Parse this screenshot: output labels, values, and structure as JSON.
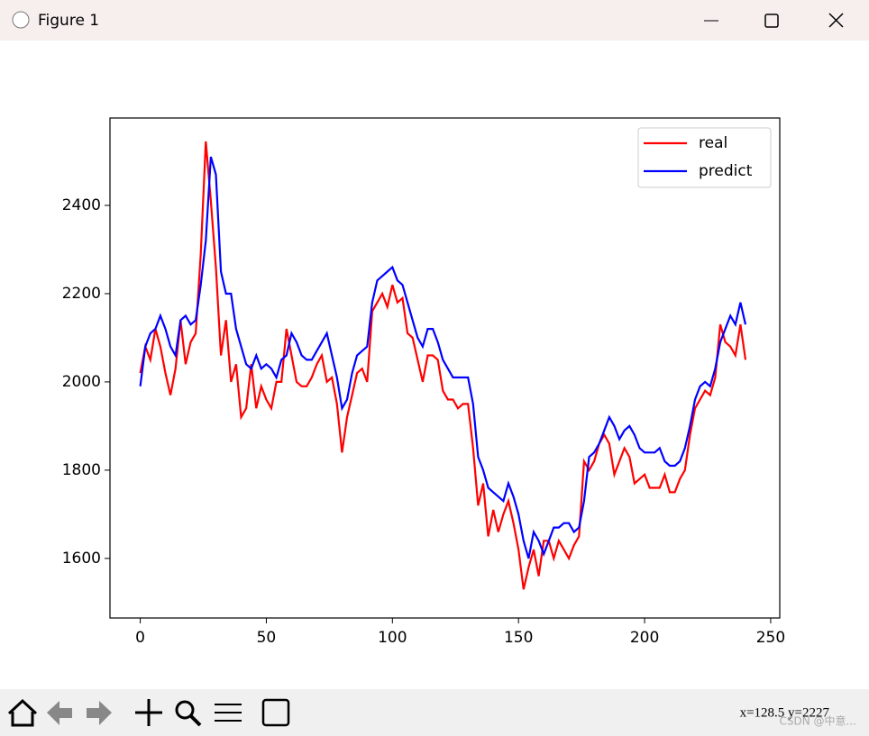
{
  "window": {
    "title": "Figure 1",
    "status": "x=128.5  y=2227",
    "watermark": "CSDN @中意..."
  },
  "chart_data": {
    "type": "line",
    "x": [
      0,
      2,
      4,
      6,
      8,
      10,
      12,
      14,
      16,
      18,
      20,
      22,
      24,
      26,
      28,
      30,
      32,
      34,
      36,
      38,
      40,
      42,
      44,
      46,
      48,
      50,
      52,
      54,
      56,
      58,
      60,
      62,
      64,
      66,
      68,
      70,
      72,
      74,
      76,
      78,
      80,
      82,
      84,
      86,
      88,
      90,
      92,
      94,
      96,
      98,
      100,
      102,
      104,
      106,
      108,
      110,
      112,
      114,
      116,
      118,
      120,
      122,
      124,
      126,
      128,
      130,
      132,
      134,
      136,
      138,
      140,
      142,
      144,
      146,
      148,
      150,
      152,
      154,
      156,
      158,
      160,
      162,
      164,
      166,
      168,
      170,
      172,
      174,
      176,
      178,
      180,
      182,
      184,
      186,
      188,
      190,
      192,
      194,
      196,
      198,
      200,
      202,
      204,
      206,
      208,
      210,
      212,
      214,
      216,
      218,
      220,
      222,
      224,
      226,
      228,
      230,
      232,
      234,
      236,
      238,
      240
    ],
    "series": [
      {
        "name": "real",
        "color": "#ff0000",
        "values": [
          2020,
          2080,
          2050,
          2120,
          2080,
          2020,
          1970,
          2030,
          2140,
          2040,
          2090,
          2110,
          2290,
          2545,
          2410,
          2260,
          2060,
          2140,
          2000,
          2040,
          1920,
          1940,
          2040,
          1940,
          1990,
          1960,
          1940,
          2000,
          2000,
          2120,
          2060,
          2000,
          1990,
          1990,
          2010,
          2040,
          2060,
          2000,
          2010,
          1950,
          1840,
          1920,
          1970,
          2020,
          2030,
          2000,
          2160,
          2180,
          2200,
          2170,
          2220,
          2180,
          2190,
          2110,
          2100,
          2050,
          2000,
          2060,
          2060,
          2050,
          1980,
          1960,
          1960,
          1940,
          1950,
          1950,
          1850,
          1720,
          1770,
          1650,
          1710,
          1660,
          1700,
          1730,
          1680,
          1620,
          1530,
          1580,
          1620,
          1560,
          1640,
          1640,
          1600,
          1640,
          1620,
          1600,
          1630,
          1650,
          1820,
          1800,
          1820,
          1860,
          1880,
          1860,
          1790,
          1820,
          1850,
          1830,
          1770,
          1780,
          1790,
          1760,
          1760,
          1760,
          1790,
          1750,
          1750,
          1780,
          1800,
          1880,
          1940,
          1960,
          1980,
          1970,
          2010,
          2130,
          2090,
          2080,
          2060,
          2130,
          2050
        ]
      },
      {
        "name": "predict",
        "color": "#0000ff",
        "values": [
          1990,
          2080,
          2110,
          2120,
          2150,
          2120,
          2080,
          2060,
          2140,
          2150,
          2130,
          2140,
          2220,
          2320,
          2510,
          2470,
          2250,
          2200,
          2200,
          2120,
          2080,
          2040,
          2030,
          2060,
          2030,
          2040,
          2030,
          2010,
          2050,
          2060,
          2110,
          2090,
          2060,
          2050,
          2050,
          2070,
          2090,
          2110,
          2060,
          2010,
          1940,
          1960,
          2020,
          2060,
          2070,
          2080,
          2180,
          2230,
          2240,
          2250,
          2260,
          2230,
          2220,
          2180,
          2140,
          2100,
          2080,
          2120,
          2120,
          2090,
          2050,
          2030,
          2010,
          2010,
          2010,
          2010,
          1950,
          1830,
          1800,
          1760,
          1750,
          1740,
          1730,
          1770,
          1740,
          1700,
          1640,
          1600,
          1660,
          1640,
          1610,
          1640,
          1670,
          1670,
          1680,
          1680,
          1660,
          1670,
          1730,
          1830,
          1840,
          1860,
          1890,
          1920,
          1900,
          1870,
          1890,
          1900,
          1880,
          1850,
          1840,
          1840,
          1840,
          1850,
          1820,
          1810,
          1810,
          1820,
          1850,
          1900,
          1960,
          1990,
          2000,
          1990,
          2030,
          2090,
          2120,
          2150,
          2130,
          2180,
          2130
        ]
      }
    ],
    "xlim": [
      -12,
      253.6
    ],
    "ylim": [
      1465,
      2598
    ],
    "xticks": [
      0,
      50,
      100,
      150,
      200,
      250
    ],
    "yticks": [
      1600,
      1800,
      2000,
      2200,
      2400
    ],
    "legend": "upper right",
    "grid": false
  }
}
